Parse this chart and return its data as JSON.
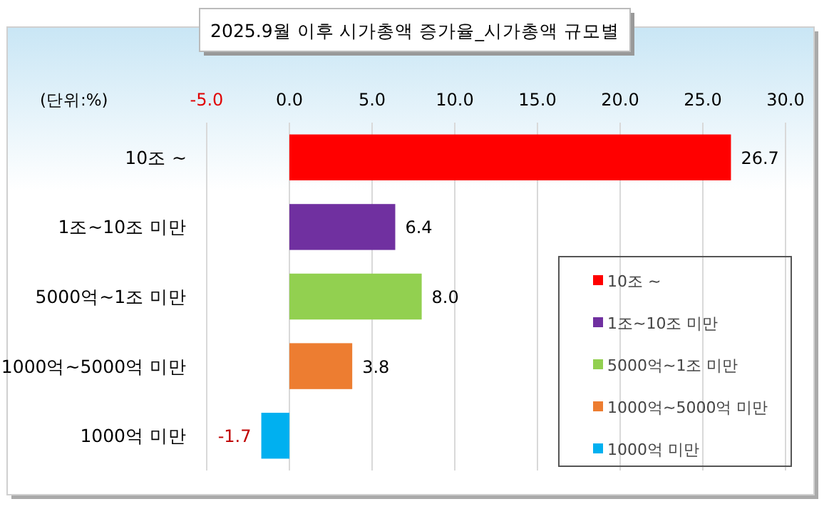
{
  "chart_data": {
    "type": "bar",
    "orientation": "horizontal",
    "title": "2025.9월 이후 시가총액 증가율_시가총액 규모별",
    "categories": [
      "10조 ~",
      "1조~10조 미만",
      "5000억~1조 미만",
      "1000억~5000억 미만",
      "1000억 미만"
    ],
    "series": [
      {
        "name": "10조 ~",
        "color": "#ff0000",
        "values": [
          26.7,
          null,
          null,
          null,
          null
        ],
        "value_labels": [
          "26.7",
          null,
          null,
          null,
          null
        ]
      },
      {
        "name": "1조~10조 미만",
        "color": "#7030a0",
        "values": [
          null,
          6.4,
          null,
          null,
          null
        ],
        "value_labels": [
          null,
          "6.4",
          null,
          null,
          null
        ]
      },
      {
        "name": "5000억~1조 미만",
        "color": "#92d050",
        "values": [
          null,
          null,
          8.0,
          null,
          null
        ],
        "value_labels": [
          null,
          null,
          "8.0",
          null,
          null
        ]
      },
      {
        "name": "1000억~5000억 미만",
        "color": "#ed7d31",
        "values": [
          null,
          null,
          null,
          3.8,
          null
        ],
        "value_labels": [
          null,
          null,
          null,
          "3.8",
          null
        ]
      },
      {
        "name": "1000억 미만",
        "color": "#00b0f0",
        "values": [
          null,
          null,
          null,
          null,
          -1.7
        ],
        "value_labels": [
          null,
          null,
          null,
          null,
          "-1.7"
        ]
      }
    ],
    "stacked": true,
    "xlim": [
      -5,
      30
    ],
    "xticks": [
      {
        "value": -5,
        "label": "-5.0"
      },
      {
        "value": 0,
        "label": "0.0"
      },
      {
        "value": 5,
        "label": "5.0"
      },
      {
        "value": 10,
        "label": "10.0"
      },
      {
        "value": 15,
        "label": "15.0"
      },
      {
        "value": 20,
        "label": "20.0"
      },
      {
        "value": 25,
        "label": "25.0"
      },
      {
        "value": 30,
        "label": "30.0"
      }
    ],
    "grid": "x",
    "legend": "right",
    "annotations": [
      "(단위:%)"
    ]
  }
}
